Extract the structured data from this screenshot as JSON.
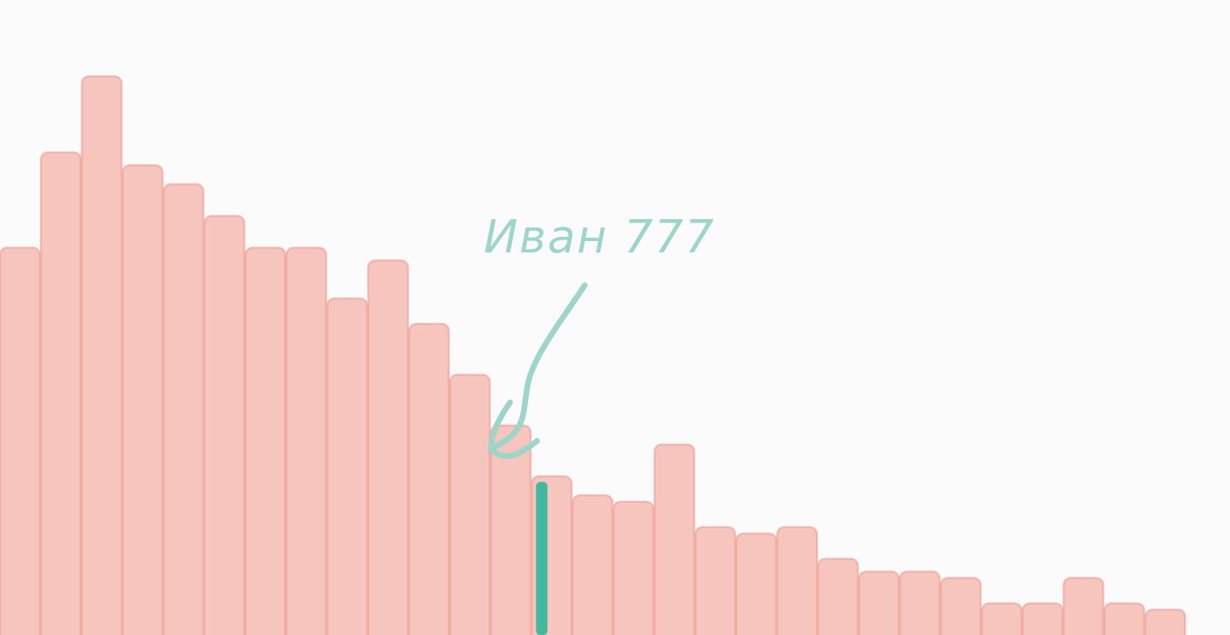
{
  "chart_data": {
    "type": "bar",
    "title": "",
    "xlabel": "",
    "ylabel": "",
    "ylim": [
      0,
      100
    ],
    "grid": false,
    "legend": "none",
    "values": [
      61,
      76,
      88,
      74,
      71,
      66,
      61,
      61,
      53,
      59,
      49,
      41,
      33,
      25,
      22,
      21,
      30,
      17,
      16,
      17,
      12,
      10,
      10,
      9,
      5,
      5,
      9,
      5,
      4
    ],
    "highlight_index": 13,
    "annotation": {
      "text": "Иван 777"
    },
    "colors": {
      "bar_fill": "#f4b0a6",
      "bar_edge": "#ec8f82",
      "highlight": "#2fb69a",
      "annotation": "#9dd5ca",
      "background": "#fbfbfb"
    }
  }
}
